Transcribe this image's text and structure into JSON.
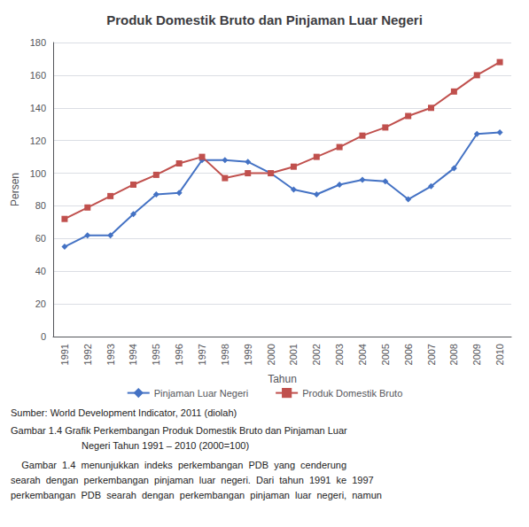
{
  "chart_data": {
    "type": "line",
    "title": "Produk Domestik Bruto dan Pinjaman Luar Negeri",
    "x_label": "Tahun",
    "y_label": "Persen",
    "categories": [
      1991,
      1992,
      1993,
      1994,
      1995,
      1996,
      1997,
      1998,
      1999,
      2000,
      2001,
      2002,
      2003,
      2004,
      2005,
      2006,
      2007,
      2008,
      2009,
      2010
    ],
    "series": [
      {
        "name": "Pinjaman Luar Negeri",
        "color": "#4472C4",
        "marker": "diamond",
        "values": [
          55,
          62,
          62,
          75,
          87,
          88,
          108,
          108,
          107,
          100,
          90,
          87,
          93,
          96,
          95,
          84,
          92,
          103,
          124,
          125
        ]
      },
      {
        "name": "Produk Domestik Bruto",
        "color": "#C0504D",
        "marker": "square",
        "values": [
          72,
          79,
          86,
          93,
          99,
          106,
          110,
          97,
          100,
          100,
          104,
          110,
          116,
          123,
          128,
          135,
          140,
          150,
          160,
          168
        ]
      }
    ],
    "ylim": [
      0,
      180
    ],
    "yticks": [
      0,
      20,
      40,
      60,
      80,
      100,
      120,
      140,
      160,
      180
    ],
    "grid": true,
    "legend": "bottom",
    "annotations": [
      "Sumber: World Development Indicator, 2011 (diolah)",
      "Gambar 1.4 Grafik Perkembangan Produk Domestik Bruto dan Pinjaman Luar",
      "Negeri Tahun 1991 – 2010 (2000=100)",
      "    Gambar  1.4  menunjukkan  indeks  perkembangan  PDB  yang  cenderung",
      "searah  dengan  perkembangan  pinjaman  luar  negeri.  Dari  tahun  1991  ke  1997",
      "perkembangan  PDB  searah  dengan  perkembangan  pinjaman  luar  negeri,  namun"
    ]
  }
}
